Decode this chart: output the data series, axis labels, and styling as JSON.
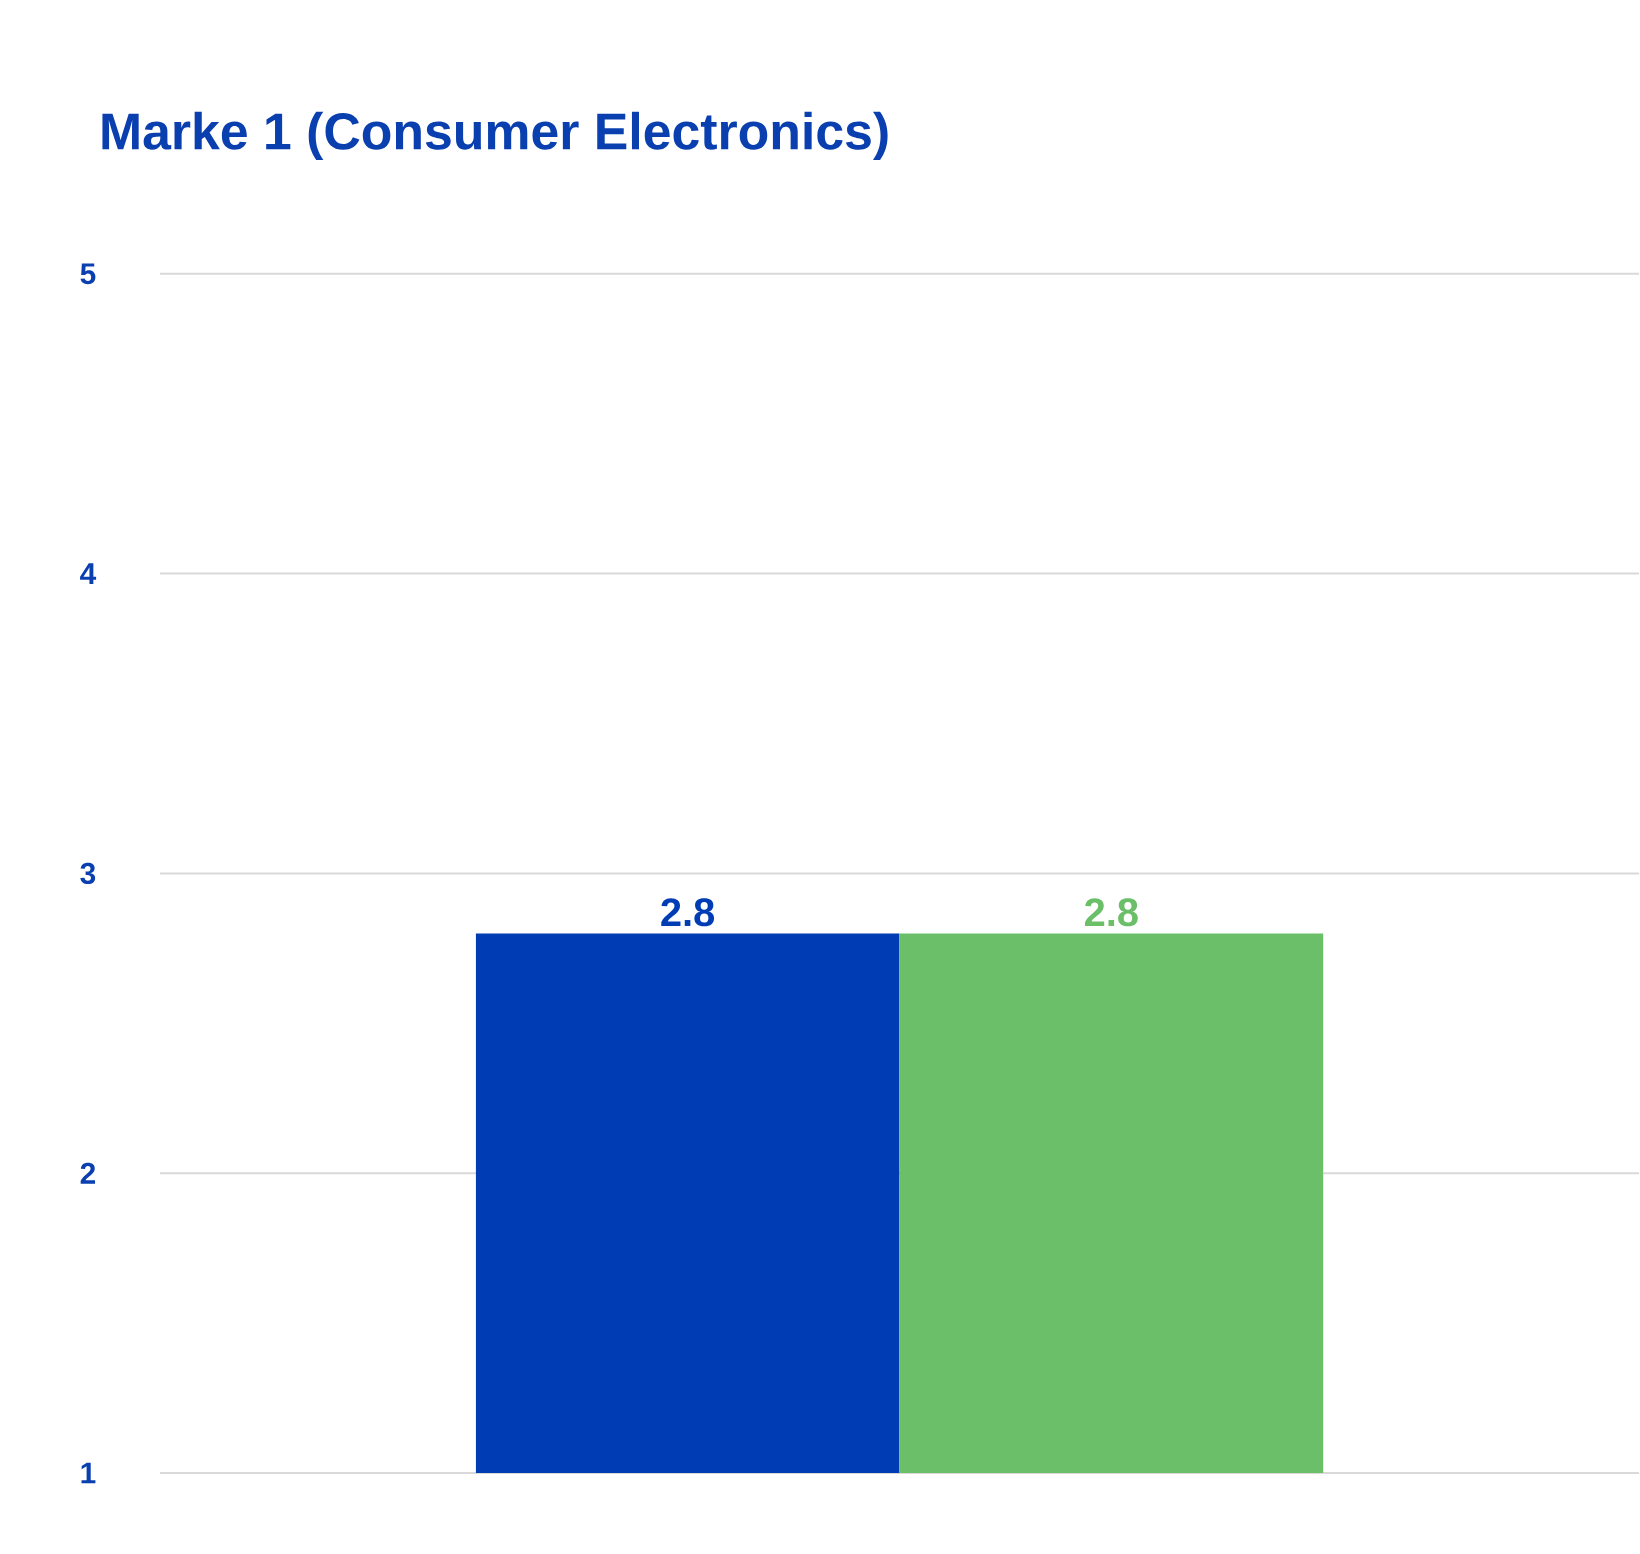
{
  "chart_data": {
    "type": "bar",
    "title": "Marke 1 (Consumer Electronics)",
    "categories": [
      null
    ],
    "series": [
      {
        "color": "#003cb4",
        "values": [
          2.8
        ]
      },
      {
        "color": "#6bbf68",
        "values": [
          2.8
        ]
      }
    ],
    "ylim": [
      1,
      5
    ],
    "yticks": [
      1,
      2,
      3,
      4,
      5
    ],
    "grid": "y",
    "data_labels": true,
    "tick_labels": "y"
  }
}
